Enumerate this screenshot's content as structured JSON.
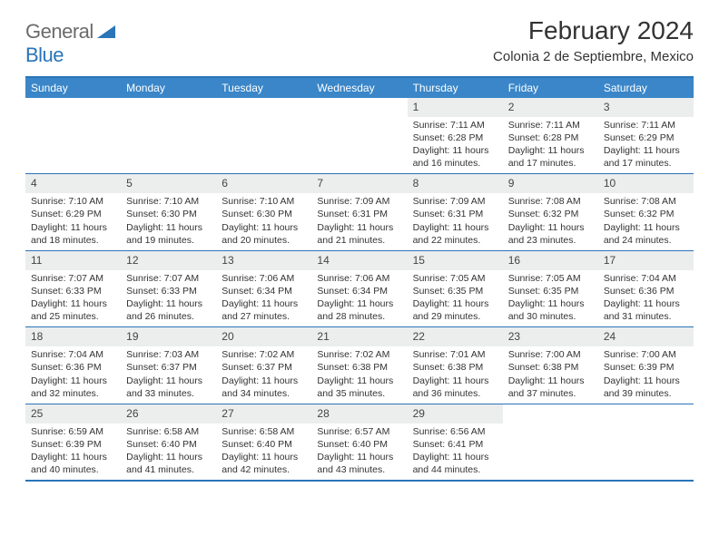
{
  "logo": {
    "word1": "General",
    "word2": "Blue",
    "triangle_color": "#2a74b8"
  },
  "title": "February 2024",
  "location": "Colonia 2 de Septiembre, Mexico",
  "colors": {
    "header_bg": "#3a86c8",
    "header_text": "#ffffff",
    "rule": "#2a74b8",
    "daynum_bg": "#eceded",
    "text": "#333333",
    "logo_grey": "#6b6b6b"
  },
  "weekdays": [
    "Sunday",
    "Monday",
    "Tuesday",
    "Wednesday",
    "Thursday",
    "Friday",
    "Saturday"
  ],
  "weeks": [
    [
      null,
      null,
      null,
      null,
      {
        "num": "1",
        "sunrise": "Sunrise: 7:11 AM",
        "sunset": "Sunset: 6:28 PM",
        "daylight": "Daylight: 11 hours and 16 minutes."
      },
      {
        "num": "2",
        "sunrise": "Sunrise: 7:11 AM",
        "sunset": "Sunset: 6:28 PM",
        "daylight": "Daylight: 11 hours and 17 minutes."
      },
      {
        "num": "3",
        "sunrise": "Sunrise: 7:11 AM",
        "sunset": "Sunset: 6:29 PM",
        "daylight": "Daylight: 11 hours and 17 minutes."
      }
    ],
    [
      {
        "num": "4",
        "sunrise": "Sunrise: 7:10 AM",
        "sunset": "Sunset: 6:29 PM",
        "daylight": "Daylight: 11 hours and 18 minutes."
      },
      {
        "num": "5",
        "sunrise": "Sunrise: 7:10 AM",
        "sunset": "Sunset: 6:30 PM",
        "daylight": "Daylight: 11 hours and 19 minutes."
      },
      {
        "num": "6",
        "sunrise": "Sunrise: 7:10 AM",
        "sunset": "Sunset: 6:30 PM",
        "daylight": "Daylight: 11 hours and 20 minutes."
      },
      {
        "num": "7",
        "sunrise": "Sunrise: 7:09 AM",
        "sunset": "Sunset: 6:31 PM",
        "daylight": "Daylight: 11 hours and 21 minutes."
      },
      {
        "num": "8",
        "sunrise": "Sunrise: 7:09 AM",
        "sunset": "Sunset: 6:31 PM",
        "daylight": "Daylight: 11 hours and 22 minutes."
      },
      {
        "num": "9",
        "sunrise": "Sunrise: 7:08 AM",
        "sunset": "Sunset: 6:32 PM",
        "daylight": "Daylight: 11 hours and 23 minutes."
      },
      {
        "num": "10",
        "sunrise": "Sunrise: 7:08 AM",
        "sunset": "Sunset: 6:32 PM",
        "daylight": "Daylight: 11 hours and 24 minutes."
      }
    ],
    [
      {
        "num": "11",
        "sunrise": "Sunrise: 7:07 AM",
        "sunset": "Sunset: 6:33 PM",
        "daylight": "Daylight: 11 hours and 25 minutes."
      },
      {
        "num": "12",
        "sunrise": "Sunrise: 7:07 AM",
        "sunset": "Sunset: 6:33 PM",
        "daylight": "Daylight: 11 hours and 26 minutes."
      },
      {
        "num": "13",
        "sunrise": "Sunrise: 7:06 AM",
        "sunset": "Sunset: 6:34 PM",
        "daylight": "Daylight: 11 hours and 27 minutes."
      },
      {
        "num": "14",
        "sunrise": "Sunrise: 7:06 AM",
        "sunset": "Sunset: 6:34 PM",
        "daylight": "Daylight: 11 hours and 28 minutes."
      },
      {
        "num": "15",
        "sunrise": "Sunrise: 7:05 AM",
        "sunset": "Sunset: 6:35 PM",
        "daylight": "Daylight: 11 hours and 29 minutes."
      },
      {
        "num": "16",
        "sunrise": "Sunrise: 7:05 AM",
        "sunset": "Sunset: 6:35 PM",
        "daylight": "Daylight: 11 hours and 30 minutes."
      },
      {
        "num": "17",
        "sunrise": "Sunrise: 7:04 AM",
        "sunset": "Sunset: 6:36 PM",
        "daylight": "Daylight: 11 hours and 31 minutes."
      }
    ],
    [
      {
        "num": "18",
        "sunrise": "Sunrise: 7:04 AM",
        "sunset": "Sunset: 6:36 PM",
        "daylight": "Daylight: 11 hours and 32 minutes."
      },
      {
        "num": "19",
        "sunrise": "Sunrise: 7:03 AM",
        "sunset": "Sunset: 6:37 PM",
        "daylight": "Daylight: 11 hours and 33 minutes."
      },
      {
        "num": "20",
        "sunrise": "Sunrise: 7:02 AM",
        "sunset": "Sunset: 6:37 PM",
        "daylight": "Daylight: 11 hours and 34 minutes."
      },
      {
        "num": "21",
        "sunrise": "Sunrise: 7:02 AM",
        "sunset": "Sunset: 6:38 PM",
        "daylight": "Daylight: 11 hours and 35 minutes."
      },
      {
        "num": "22",
        "sunrise": "Sunrise: 7:01 AM",
        "sunset": "Sunset: 6:38 PM",
        "daylight": "Daylight: 11 hours and 36 minutes."
      },
      {
        "num": "23",
        "sunrise": "Sunrise: 7:00 AM",
        "sunset": "Sunset: 6:38 PM",
        "daylight": "Daylight: 11 hours and 37 minutes."
      },
      {
        "num": "24",
        "sunrise": "Sunrise: 7:00 AM",
        "sunset": "Sunset: 6:39 PM",
        "daylight": "Daylight: 11 hours and 39 minutes."
      }
    ],
    [
      {
        "num": "25",
        "sunrise": "Sunrise: 6:59 AM",
        "sunset": "Sunset: 6:39 PM",
        "daylight": "Daylight: 11 hours and 40 minutes."
      },
      {
        "num": "26",
        "sunrise": "Sunrise: 6:58 AM",
        "sunset": "Sunset: 6:40 PM",
        "daylight": "Daylight: 11 hours and 41 minutes."
      },
      {
        "num": "27",
        "sunrise": "Sunrise: 6:58 AM",
        "sunset": "Sunset: 6:40 PM",
        "daylight": "Daylight: 11 hours and 42 minutes."
      },
      {
        "num": "28",
        "sunrise": "Sunrise: 6:57 AM",
        "sunset": "Sunset: 6:40 PM",
        "daylight": "Daylight: 11 hours and 43 minutes."
      },
      {
        "num": "29",
        "sunrise": "Sunrise: 6:56 AM",
        "sunset": "Sunset: 6:41 PM",
        "daylight": "Daylight: 11 hours and 44 minutes."
      },
      null,
      null
    ]
  ]
}
